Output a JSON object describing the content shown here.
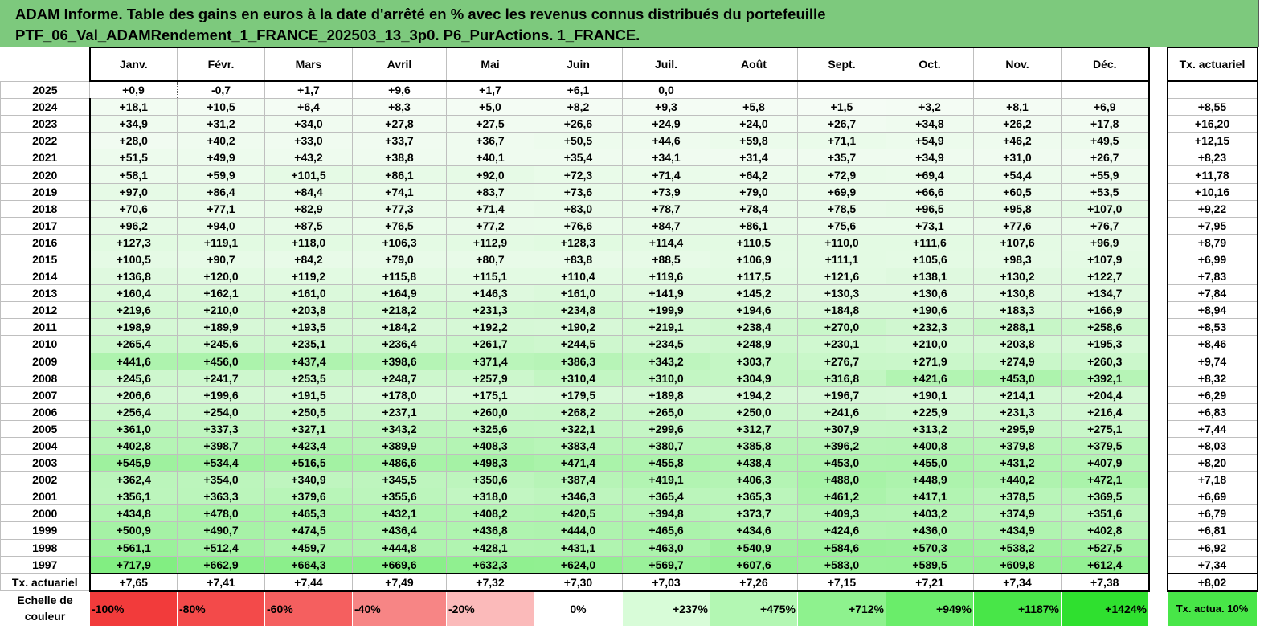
{
  "title": {
    "line1": "ADAM Informe. Table des gains en euros à la date d'arrêté en % avec les revenus connus distribués du portefeuille",
    "line2": "PTF_06_Val_ADAMRendement_1_FRANCE_202503_13_3p0. P6_PurActions. 1_FRANCE."
  },
  "months": [
    "Janv.",
    "Févr.",
    "Mars",
    "Avril",
    "Mai",
    "Juin",
    "Juil.",
    "Août",
    "Sept.",
    "Oct.",
    "Nov.",
    "Déc."
  ],
  "tx_header": "Tx. actuariel",
  "rows": [
    {
      "year": "2025",
      "vals": [
        "+0,9",
        "-0,7",
        "+1,7",
        "+9,6",
        "+1,7",
        "+6,1",
        "0,0",
        "",
        "",
        "",
        "",
        ""
      ],
      "tx": ""
    },
    {
      "year": "2024",
      "vals": [
        "+18,1",
        "+10,5",
        "+6,4",
        "+8,3",
        "+5,0",
        "+8,2",
        "+9,3",
        "+5,8",
        "+1,5",
        "+3,2",
        "+8,1",
        "+6,9"
      ],
      "tx": "+8,55"
    },
    {
      "year": "2023",
      "vals": [
        "+34,9",
        "+31,2",
        "+34,0",
        "+27,8",
        "+27,5",
        "+26,6",
        "+24,9",
        "+24,0",
        "+26,7",
        "+34,8",
        "+26,2",
        "+17,8"
      ],
      "tx": "+16,20"
    },
    {
      "year": "2022",
      "vals": [
        "+28,0",
        "+40,2",
        "+33,0",
        "+33,7",
        "+36,7",
        "+50,5",
        "+44,6",
        "+59,8",
        "+71,1",
        "+54,9",
        "+46,2",
        "+49,5"
      ],
      "tx": "+12,15"
    },
    {
      "year": "2021",
      "vals": [
        "+51,5",
        "+49,9",
        "+43,2",
        "+38,8",
        "+40,1",
        "+35,4",
        "+34,1",
        "+31,4",
        "+35,7",
        "+34,9",
        "+31,0",
        "+26,7"
      ],
      "tx": "+8,23"
    },
    {
      "year": "2020",
      "vals": [
        "+58,1",
        "+59,9",
        "+101,5",
        "+86,1",
        "+92,0",
        "+72,3",
        "+71,4",
        "+64,2",
        "+72,9",
        "+69,4",
        "+54,4",
        "+55,9"
      ],
      "tx": "+11,78"
    },
    {
      "year": "2019",
      "vals": [
        "+97,0",
        "+86,4",
        "+84,4",
        "+74,1",
        "+83,7",
        "+73,6",
        "+73,9",
        "+79,0",
        "+69,9",
        "+66,6",
        "+60,5",
        "+53,5"
      ],
      "tx": "+10,16"
    },
    {
      "year": "2018",
      "vals": [
        "+70,6",
        "+77,1",
        "+82,9",
        "+77,3",
        "+71,4",
        "+83,0",
        "+78,7",
        "+78,4",
        "+78,5",
        "+96,5",
        "+95,8",
        "+107,0"
      ],
      "tx": "+9,22"
    },
    {
      "year": "2017",
      "vals": [
        "+96,2",
        "+94,0",
        "+87,5",
        "+76,5",
        "+77,2",
        "+76,6",
        "+84,7",
        "+86,1",
        "+75,6",
        "+73,1",
        "+77,6",
        "+76,7"
      ],
      "tx": "+7,95"
    },
    {
      "year": "2016",
      "vals": [
        "+127,3",
        "+119,1",
        "+118,0",
        "+106,3",
        "+112,9",
        "+128,3",
        "+114,4",
        "+110,5",
        "+110,0",
        "+111,6",
        "+107,6",
        "+96,9"
      ],
      "tx": "+8,79"
    },
    {
      "year": "2015",
      "vals": [
        "+100,5",
        "+90,7",
        "+84,2",
        "+79,0",
        "+80,7",
        "+83,8",
        "+88,5",
        "+106,9",
        "+111,1",
        "+105,6",
        "+98,3",
        "+107,9"
      ],
      "tx": "+6,99"
    },
    {
      "year": "2014",
      "vals": [
        "+136,8",
        "+120,0",
        "+119,2",
        "+115,8",
        "+115,1",
        "+110,4",
        "+119,6",
        "+117,5",
        "+121,6",
        "+138,1",
        "+130,2",
        "+122,7"
      ],
      "tx": "+7,83"
    },
    {
      "year": "2013",
      "vals": [
        "+160,4",
        "+162,1",
        "+161,0",
        "+164,9",
        "+146,3",
        "+161,0",
        "+141,9",
        "+145,2",
        "+130,3",
        "+130,6",
        "+130,8",
        "+134,7"
      ],
      "tx": "+7,84"
    },
    {
      "year": "2012",
      "vals": [
        "+219,6",
        "+210,0",
        "+203,8",
        "+218,2",
        "+231,3",
        "+234,8",
        "+199,9",
        "+194,6",
        "+184,8",
        "+190,6",
        "+183,3",
        "+166,9"
      ],
      "tx": "+8,94"
    },
    {
      "year": "2011",
      "vals": [
        "+198,9",
        "+189,9",
        "+193,5",
        "+184,2",
        "+192,2",
        "+190,2",
        "+219,1",
        "+238,4",
        "+270,0",
        "+232,3",
        "+288,1",
        "+258,6"
      ],
      "tx": "+8,53"
    },
    {
      "year": "2010",
      "vals": [
        "+265,4",
        "+245,6",
        "+235,1",
        "+236,4",
        "+261,7",
        "+244,5",
        "+234,5",
        "+248,9",
        "+230,1",
        "+210,0",
        "+203,8",
        "+195,3"
      ],
      "tx": "+8,46"
    },
    {
      "year": "2009",
      "vals": [
        "+441,6",
        "+456,0",
        "+437,4",
        "+398,6",
        "+371,4",
        "+386,3",
        "+343,2",
        "+303,7",
        "+276,7",
        "+271,9",
        "+274,9",
        "+260,3"
      ],
      "tx": "+9,74"
    },
    {
      "year": "2008",
      "vals": [
        "+245,6",
        "+241,7",
        "+253,5",
        "+248,7",
        "+257,9",
        "+310,4",
        "+310,0",
        "+304,9",
        "+316,8",
        "+421,6",
        "+453,0",
        "+392,1"
      ],
      "tx": "+8,32"
    },
    {
      "year": "2007",
      "vals": [
        "+206,6",
        "+199,6",
        "+191,5",
        "+178,0",
        "+175,1",
        "+179,5",
        "+189,8",
        "+194,2",
        "+196,7",
        "+190,1",
        "+214,1",
        "+204,4"
      ],
      "tx": "+6,29"
    },
    {
      "year": "2006",
      "vals": [
        "+256,4",
        "+254,0",
        "+250,5",
        "+237,1",
        "+260,0",
        "+268,2",
        "+265,0",
        "+250,0",
        "+241,6",
        "+225,9",
        "+231,3",
        "+216,4"
      ],
      "tx": "+6,83"
    },
    {
      "year": "2005",
      "vals": [
        "+361,0",
        "+337,3",
        "+327,1",
        "+343,2",
        "+325,6",
        "+322,1",
        "+299,6",
        "+312,7",
        "+307,9",
        "+313,2",
        "+295,9",
        "+275,1"
      ],
      "tx": "+7,44"
    },
    {
      "year": "2004",
      "vals": [
        "+402,8",
        "+398,7",
        "+423,4",
        "+389,9",
        "+408,3",
        "+383,4",
        "+380,7",
        "+385,8",
        "+396,2",
        "+400,8",
        "+379,8",
        "+379,5"
      ],
      "tx": "+8,03"
    },
    {
      "year": "2003",
      "vals": [
        "+545,9",
        "+534,4",
        "+516,5",
        "+486,6",
        "+498,3",
        "+471,4",
        "+455,8",
        "+438,4",
        "+453,0",
        "+455,0",
        "+431,2",
        "+407,9"
      ],
      "tx": "+8,20"
    },
    {
      "year": "2002",
      "vals": [
        "+362,4",
        "+354,0",
        "+340,9",
        "+345,5",
        "+350,6",
        "+387,4",
        "+419,1",
        "+406,3",
        "+488,0",
        "+448,9",
        "+440,2",
        "+472,1"
      ],
      "tx": "+7,18"
    },
    {
      "year": "2001",
      "vals": [
        "+356,1",
        "+363,3",
        "+379,6",
        "+355,6",
        "+318,0",
        "+346,3",
        "+365,4",
        "+365,3",
        "+461,2",
        "+417,1",
        "+378,5",
        "+369,5"
      ],
      "tx": "+6,69"
    },
    {
      "year": "2000",
      "vals": [
        "+434,8",
        "+478,0",
        "+465,3",
        "+432,1",
        "+408,2",
        "+420,5",
        "+394,8",
        "+373,7",
        "+409,3",
        "+403,2",
        "+374,9",
        "+351,6"
      ],
      "tx": "+6,79"
    },
    {
      "year": "1999",
      "vals": [
        "+500,9",
        "+490,7",
        "+474,5",
        "+436,4",
        "+436,8",
        "+444,0",
        "+465,6",
        "+434,6",
        "+424,6",
        "+436,0",
        "+434,9",
        "+402,8"
      ],
      "tx": "+6,81"
    },
    {
      "year": "1998",
      "vals": [
        "+561,1",
        "+512,4",
        "+459,7",
        "+444,8",
        "+428,1",
        "+431,1",
        "+463,0",
        "+540,9",
        "+584,6",
        "+570,3",
        "+538,2",
        "+527,5"
      ],
      "tx": "+6,92"
    },
    {
      "year": "1997",
      "vals": [
        "+717,9",
        "+662,9",
        "+664,3",
        "+669,6",
        "+632,3",
        "+624,0",
        "+569,7",
        "+607,6",
        "+583,0",
        "+589,5",
        "+609,8",
        "+612,4"
      ],
      "tx": "+7,34"
    }
  ],
  "footer": {
    "label": "Tx. actuariel",
    "vals": [
      "+7,65",
      "+7,41",
      "+7,44",
      "+7,49",
      "+7,32",
      "+7,30",
      "+7,03",
      "+7,26",
      "+7,15",
      "+7,21",
      "+7,34",
      "+7,38"
    ],
    "tx": "+8,02"
  },
  "scale": {
    "label": "Echelle de couleur",
    "items": [
      "-100%",
      "-80%",
      "-60%",
      "-40%",
      "-20%",
      "0%",
      "+237%",
      "+475%",
      "+712%",
      "+949%",
      "+1187%",
      "+1424%"
    ],
    "colors": [
      "#f23b3b",
      "#f34a4a",
      "#f55f5f",
      "#f78585",
      "#fbbaba",
      "#ffffff",
      "#d8fcd8",
      "#b3f7b3",
      "#8ef28e",
      "#6aed6a",
      "#48e648",
      "#2fe02f"
    ],
    "tx_label": "Tx. actua. 10%",
    "tx_color": "#48e648"
  }
}
